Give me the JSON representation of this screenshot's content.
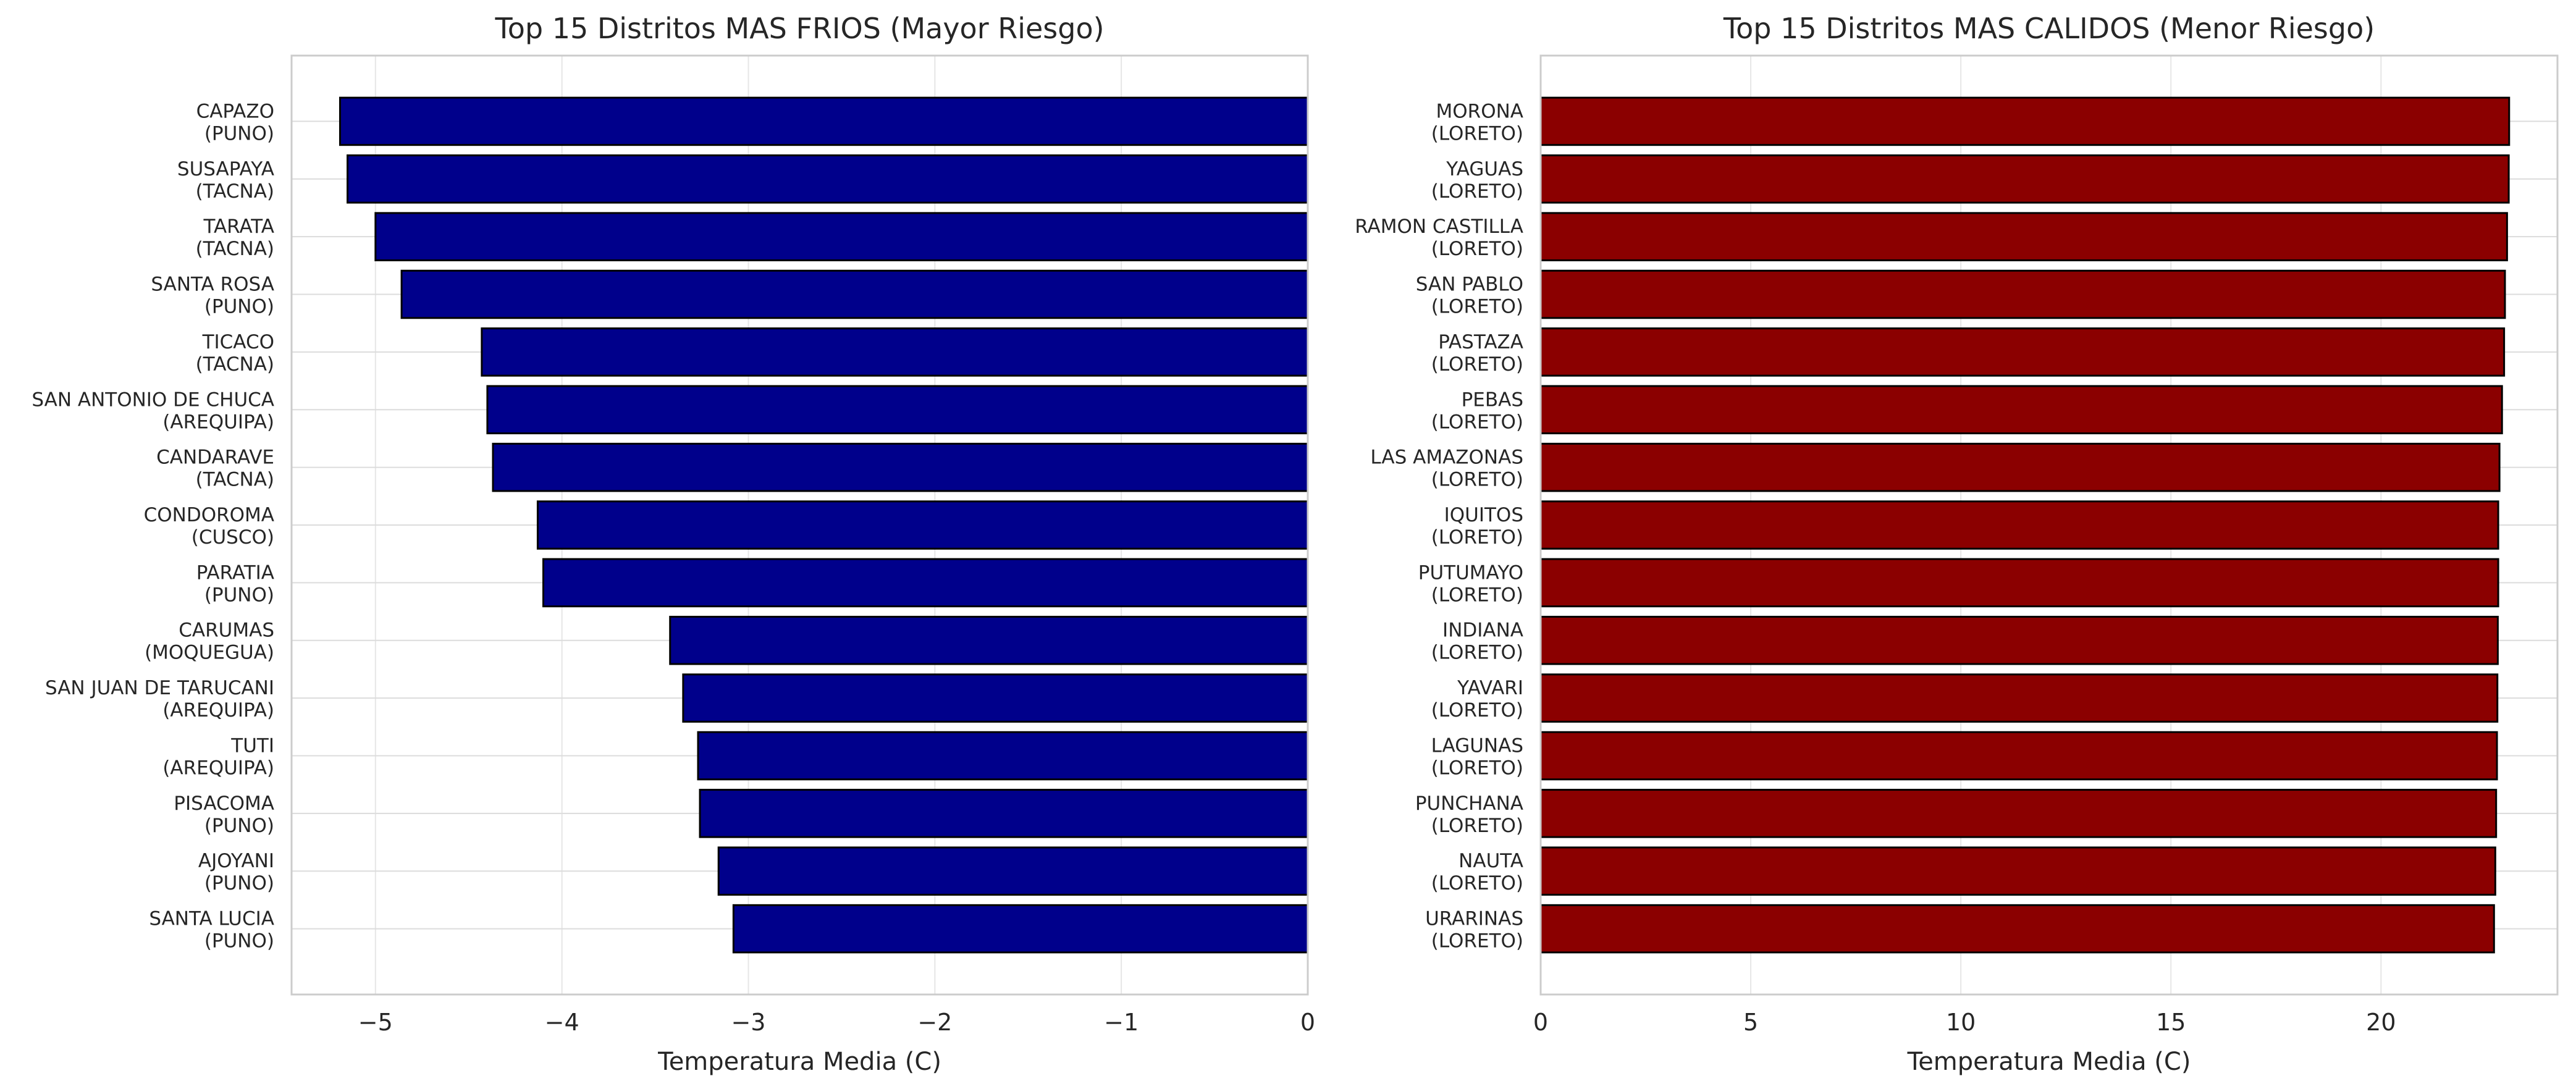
{
  "chart_data": [
    {
      "type": "bar",
      "orientation": "horizontal",
      "title": "Top 15 Distritos MAS FRIOS (Mayor Riesgo)",
      "xlabel": "Temperatura Media (C)",
      "ylabel": "",
      "xlim": [
        -5.45,
        0
      ],
      "xticks": [
        -5,
        -4,
        -3,
        -2,
        -1,
        0
      ],
      "xtick_labels": [
        "−5",
        "−4",
        "−3",
        "−2",
        "−1",
        "0"
      ],
      "grid": true,
      "bar_color": "#00008b",
      "reference_line": 0,
      "reference_line_color": "#e89a9a",
      "categories": [
        [
          "CAPAZO",
          "(PUNO)"
        ],
        [
          "SUSAPAYA",
          "(TACNA)"
        ],
        [
          "TARATA",
          "(TACNA)"
        ],
        [
          "SANTA ROSA",
          "(PUNO)"
        ],
        [
          "TICACO",
          "(TACNA)"
        ],
        [
          "SAN ANTONIO DE CHUCA",
          "(AREQUIPA)"
        ],
        [
          "CANDARAVE",
          "(TACNA)"
        ],
        [
          "CONDOROMA",
          "(CUSCO)"
        ],
        [
          "PARATIA",
          "(PUNO)"
        ],
        [
          "CARUMAS",
          "(MOQUEGUA)"
        ],
        [
          "SAN JUAN DE TARUCANI",
          "(AREQUIPA)"
        ],
        [
          "TUTI",
          "(AREQUIPA)"
        ],
        [
          "PISACOMA",
          "(PUNO)"
        ],
        [
          "AJOYANI",
          "(PUNO)"
        ],
        [
          "SANTA LUCIA",
          "(PUNO)"
        ]
      ],
      "values": [
        -5.19,
        -5.15,
        -5.0,
        -4.86,
        -4.43,
        -4.4,
        -4.37,
        -4.13,
        -4.1,
        -3.42,
        -3.35,
        -3.27,
        -3.26,
        -3.16,
        -3.08
      ]
    },
    {
      "type": "bar",
      "orientation": "horizontal",
      "title": "Top 15 Distritos MAS CALIDOS (Menor Riesgo)",
      "xlabel": "Temperatura Media (C)",
      "ylabel": "",
      "xlim": [
        0,
        24.2
      ],
      "xticks": [
        0,
        5,
        10,
        15,
        20
      ],
      "xtick_labels": [
        "0",
        "5",
        "10",
        "15",
        "20"
      ],
      "grid": true,
      "bar_color": "#8b0000",
      "categories": [
        [
          "MORONA",
          "(LORETO)"
        ],
        [
          "YAGUAS",
          "(LORETO)"
        ],
        [
          "RAMON CASTILLA",
          "(LORETO)"
        ],
        [
          "SAN PABLO",
          "(LORETO)"
        ],
        [
          "PASTAZA",
          "(LORETO)"
        ],
        [
          "PEBAS",
          "(LORETO)"
        ],
        [
          "LAS AMAZONAS",
          "(LORETO)"
        ],
        [
          "IQUITOS",
          "(LORETO)"
        ],
        [
          "PUTUMAYO",
          "(LORETO)"
        ],
        [
          "INDIANA",
          "(LORETO)"
        ],
        [
          "YAVARI",
          "(LORETO)"
        ],
        [
          "LAGUNAS",
          "(LORETO)"
        ],
        [
          "PUNCHANA",
          "(LORETO)"
        ],
        [
          "NAUTA",
          "(LORETO)"
        ],
        [
          "URARINAS",
          "(LORETO)"
        ]
      ],
      "values": [
        23.05,
        23.04,
        23.0,
        22.95,
        22.93,
        22.88,
        22.82,
        22.79,
        22.79,
        22.78,
        22.77,
        22.76,
        22.74,
        22.72,
        22.69
      ]
    }
  ]
}
